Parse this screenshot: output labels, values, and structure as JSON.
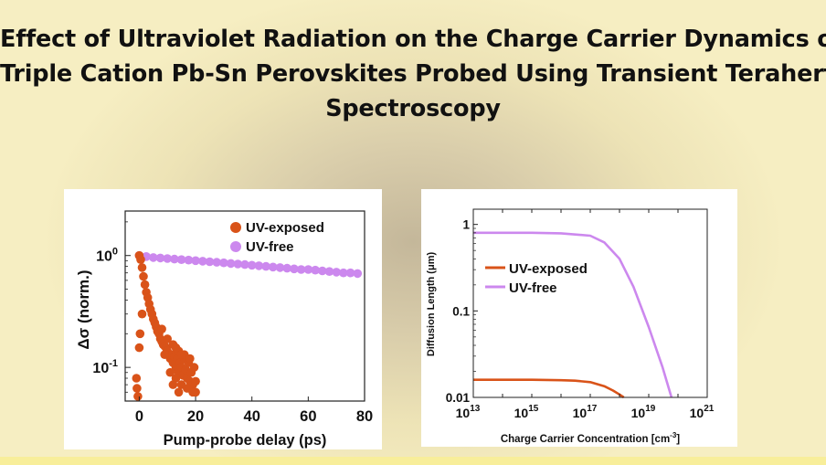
{
  "title": {
    "line1": "Effect of Ultraviolet Radiation on the Charge Carrier Dynamics of",
    "line2": "Triple Cation Pb-Sn Perovskites Probed Using Transient Terahertz",
    "line3": "Spectroscopy"
  },
  "chart_data": [
    {
      "type": "scatter",
      "xlabel": "Pump-probe delay (ps)",
      "ylabel": "Δσ (norm.)",
      "yscale": "log",
      "xlim": [
        -5,
        80
      ],
      "ylim": [
        0.05,
        2.5
      ],
      "x_ticks": [
        "0",
        "20",
        "40",
        "60",
        "80"
      ],
      "y_ticks": [
        {
          "base": "10",
          "exp": "0"
        },
        {
          "base": "10",
          "exp": "-1"
        }
      ],
      "legend_position": "top-right",
      "colors": {
        "uv_exposed": "#d95319",
        "uv_free": "#cc88ee"
      },
      "series": [
        {
          "name": "UV-exposed",
          "x": [
            -1,
            -0.5,
            0,
            0.5,
            1,
            1.5,
            2,
            2.5,
            3,
            3.5,
            4,
            4.5,
            5,
            5.5,
            6,
            6.5,
            7,
            7.5,
            8,
            8.5,
            9,
            9.5,
            10,
            10.5,
            11,
            11.5,
            12,
            12.5,
            13,
            13.5,
            14,
            14.5,
            15,
            15.5,
            16,
            16.5,
            17,
            17.5,
            18,
            18.5,
            19,
            19.5,
            20,
            0,
            0.3,
            -0.8,
            1,
            8,
            9,
            10,
            11,
            12,
            13,
            14,
            15,
            16,
            17,
            18,
            19,
            20,
            12,
            13,
            14,
            15
          ],
          "y": [
            0.08,
            0.055,
            1.0,
            0.92,
            0.78,
            0.65,
            0.55,
            0.47,
            0.42,
            0.37,
            0.33,
            0.3,
            0.27,
            0.25,
            0.23,
            0.21,
            0.2,
            0.18,
            0.17,
            0.16,
            0.155,
            0.15,
            0.14,
            0.13,
            0.12,
            0.13,
            0.11,
            0.125,
            0.1,
            0.12,
            0.09,
            0.11,
            0.1,
            0.085,
            0.12,
            0.095,
            0.08,
            0.11,
            0.075,
            0.09,
            0.07,
            0.1,
            0.06,
            0.15,
            0.2,
            0.065,
            0.3,
            0.22,
            0.13,
            0.18,
            0.09,
            0.16,
            0.08,
            0.14,
            0.07,
            0.13,
            0.065,
            0.12,
            0.06,
            0.075,
            0.07,
            0.15,
            0.06,
            0.13
          ]
        },
        {
          "name": "UV-free",
          "x": [
            0,
            2.5,
            5,
            7.5,
            10,
            12.5,
            15,
            17.5,
            20,
            22.5,
            25,
            27.5,
            30,
            32.5,
            35,
            37.5,
            40,
            42.5,
            45,
            47.5,
            50,
            52.5,
            55,
            57.5,
            60,
            62.5,
            65,
            67.5,
            70,
            72.5,
            75,
            77.5
          ],
          "y": [
            1.0,
            0.98,
            0.96,
            0.95,
            0.94,
            0.93,
            0.92,
            0.91,
            0.9,
            0.89,
            0.88,
            0.87,
            0.86,
            0.85,
            0.84,
            0.83,
            0.82,
            0.81,
            0.8,
            0.79,
            0.78,
            0.77,
            0.76,
            0.75,
            0.75,
            0.74,
            0.73,
            0.72,
            0.71,
            0.7,
            0.7,
            0.69
          ]
        }
      ]
    },
    {
      "type": "line",
      "xlabel": "Charge Carrier Concentration [cm",
      "xlabel_sup": "-3",
      "xlabel_end": "]",
      "ylabel": "Diffusion Length (μm)",
      "xscale": "log",
      "yscale": "log",
      "xlim": [
        10000000000000.0,
        1e+21
      ],
      "ylim": [
        0.01,
        1.5
      ],
      "x_ticks": [
        {
          "base": "10",
          "exp": "13"
        },
        {
          "base": "10",
          "exp": "15"
        },
        {
          "base": "10",
          "exp": "17"
        },
        {
          "base": "10",
          "exp": "19"
        },
        {
          "base": "10",
          "exp": "21"
        }
      ],
      "y_ticks": [
        "1",
        "0.1",
        "0.01"
      ],
      "legend_position": "center-left",
      "colors": {
        "uv_exposed": "#d95319",
        "uv_free": "#cc88ee"
      },
      "series": [
        {
          "name": "UV-exposed",
          "x": [
            10000000000000.0,
            100000000000000.0,
            1000000000000000.0,
            1e+16,
            3e+16,
            1e+17,
            3e+17,
            6e+17,
            1e+18,
            1.4e+18
          ],
          "y": [
            0.016,
            0.016,
            0.016,
            0.0158,
            0.0156,
            0.015,
            0.0135,
            0.012,
            0.0108,
            0.01
          ]
        },
        {
          "name": "UV-free",
          "x": [
            10000000000000.0,
            100000000000000.0,
            1000000000000000.0,
            1e+16,
            1e+17,
            3e+17,
            1e+18,
            3e+18,
            1e+19,
            3e+19,
            6e+19
          ],
          "y": [
            0.8,
            0.8,
            0.8,
            0.79,
            0.74,
            0.62,
            0.4,
            0.19,
            0.065,
            0.022,
            0.01
          ]
        }
      ]
    }
  ]
}
